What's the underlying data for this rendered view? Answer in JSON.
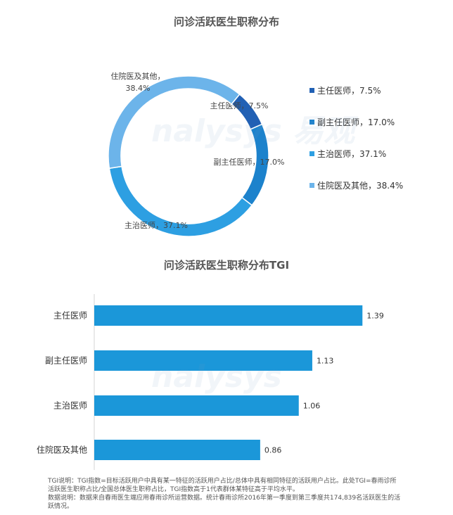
{
  "donut_chart": {
    "title": "问诊活跃医生职称分布"
  },
  "bar_chart": {
    "title": "问诊活跃医生职称分布TGI"
  },
  "chart_data": [
    {
      "type": "pie",
      "title": "问诊活跃医生职称分布",
      "categories": [
        "主任医师",
        "副主任医师",
        "主治医师",
        "住院医及其他"
      ],
      "values": [
        7.5,
        17.0,
        37.1,
        38.4
      ],
      "unit": "%",
      "data_labels": [
        "主任医师，7.5%",
        "副主任医师，17.0%",
        "主治医师，37.1%",
        "住院医及其他，38.4%"
      ],
      "colors": [
        "#2160b4",
        "#1c82cc",
        "#2d9fe2",
        "#6cb4ea"
      ],
      "legend": {
        "position": "right",
        "entries": [
          "主任医师，7.5%",
          "副主任医师，17.0%",
          "主治医师，37.1%",
          "住院医及其他，38.4%"
        ]
      }
    },
    {
      "type": "bar",
      "orientation": "horizontal",
      "title": "问诊活跃医生职称分布TGI",
      "categories": [
        "主任医师",
        "副主任医师",
        "主治医师",
        "住院医及其他"
      ],
      "values": [
        1.39,
        1.13,
        1.06,
        0.86
      ],
      "value_labels": [
        "1.39",
        "1.13",
        "1.06",
        "0.86"
      ],
      "color": "#1b97d9",
      "xlim": [
        0,
        1.4
      ],
      "grid": false
    }
  ],
  "notes": {
    "line1": "TGI说明：TGI指数=目标活跃用户中具有某一特征的活跃用户占比/总体中具有相同特征的活跃用户占比。此处TGI=春雨诊所",
    "line2": "活跃医生职称占比/全国总体医生职称占比，TGI指数高于1代表群体某特征高于平均水平。",
    "line3": "数据说明：数据来自春雨医生端应用春雨诊所运营数据。统计春雨诊所2016年第一季度到第三季度共174,839名活跃医生的活",
    "line4": "跃情况。"
  },
  "watermark": {
    "brand": "nalysys 易观"
  }
}
